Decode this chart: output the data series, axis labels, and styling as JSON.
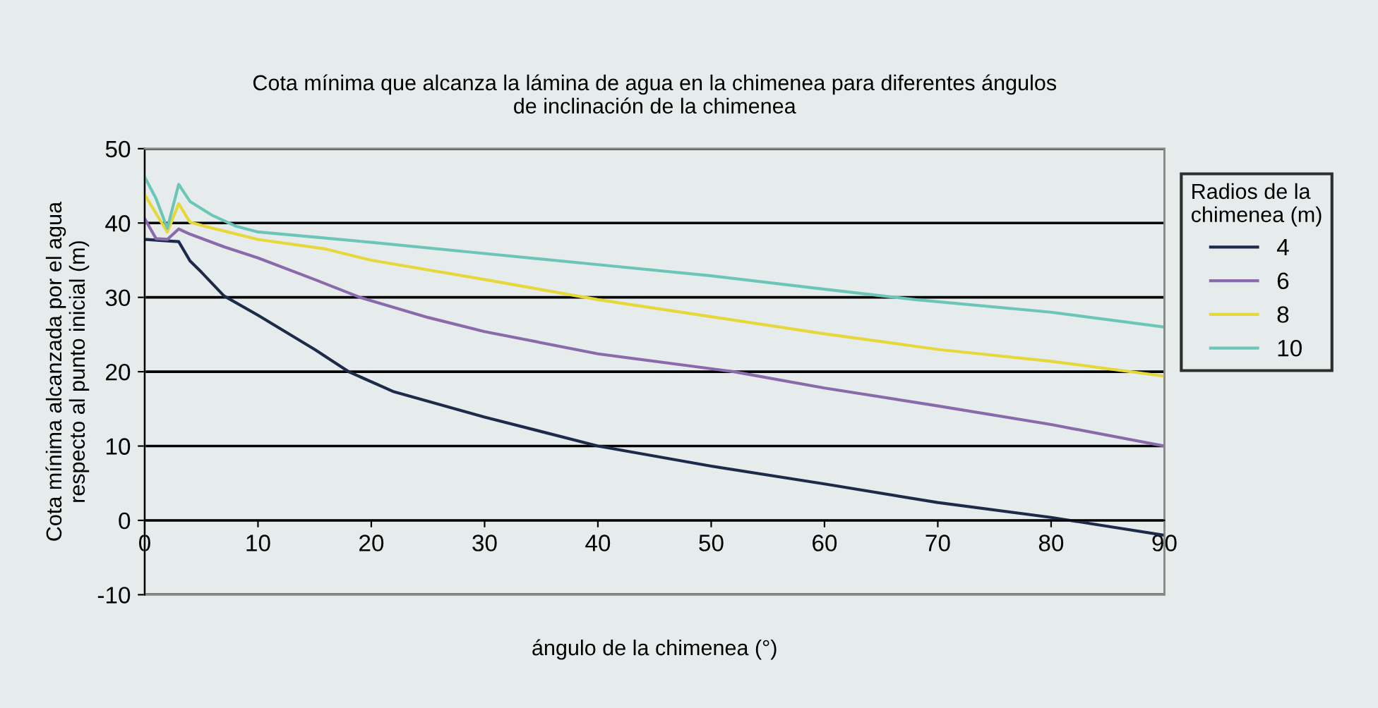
{
  "chart_data": {
    "type": "line",
    "title": "Cota mínima que alcanza la lámina de agua en la chimenea para diferentes ángulos\nde inclinación de la chimenea",
    "xlabel": "ángulo de la chimenea (°)",
    "ylabel": "Cota mínima alcanzada por el agua\nrespecto al punto inicial (m)",
    "legend_title": "Radios de la\nchimenea (m)",
    "legend": "right",
    "grid": "y",
    "marker": "none",
    "line_style": "solid",
    "xlim": [
      0,
      90
    ],
    "xticks": [
      0,
      10,
      20,
      30,
      40,
      50,
      60,
      70,
      80,
      90
    ],
    "ylim": [
      -10,
      50
    ],
    "yticks": [
      -10,
      0,
      10,
      20,
      30,
      40,
      50
    ],
    "series": [
      {
        "name": "4",
        "color": "#1e2a4a",
        "x": [
          0,
          2,
          3,
          4,
          5,
          7,
          10,
          15,
          18,
          22,
          30,
          40,
          50,
          60,
          70,
          80,
          90
        ],
        "values": [
          37.8,
          37.6,
          37.5,
          34.9,
          33.4,
          30.2,
          27.6,
          23,
          20,
          17.3,
          13.9,
          10,
          7.3,
          4.9,
          2.4,
          0.4,
          -2.0
        ]
      },
      {
        "name": "6",
        "color": "#8a6aaa",
        "x": [
          0,
          1,
          2,
          3,
          4,
          7,
          10,
          15,
          19,
          25,
          30,
          40,
          52,
          60,
          70,
          80,
          90
        ],
        "values": [
          40.6,
          37.9,
          37.8,
          39.2,
          38.5,
          36.8,
          35.3,
          32.4,
          30,
          27.3,
          25.4,
          22.4,
          20,
          17.8,
          15.4,
          12.9,
          10
        ]
      },
      {
        "name": "8",
        "color": "#e6d83a",
        "x": [
          0,
          1,
          2,
          3,
          4,
          6,
          10,
          16,
          20,
          30,
          40,
          50,
          60,
          70,
          80,
          90
        ],
        "values": [
          43.8,
          41.3,
          38.8,
          42.6,
          40.1,
          39.3,
          37.8,
          36.5,
          35,
          32.4,
          29.7,
          27.4,
          25.1,
          23,
          21.4,
          19.4
        ]
      },
      {
        "name": "10",
        "color": "#6cc6b8",
        "x": [
          0,
          1,
          2,
          3,
          4,
          6,
          8,
          10,
          20,
          30,
          40,
          50,
          60,
          68,
          80,
          90
        ],
        "values": [
          46.2,
          43.3,
          39.3,
          45.2,
          42.9,
          41,
          39.6,
          38.8,
          37.4,
          35.9,
          34.4,
          32.9,
          31.1,
          29.7,
          28,
          26
        ]
      }
    ]
  }
}
